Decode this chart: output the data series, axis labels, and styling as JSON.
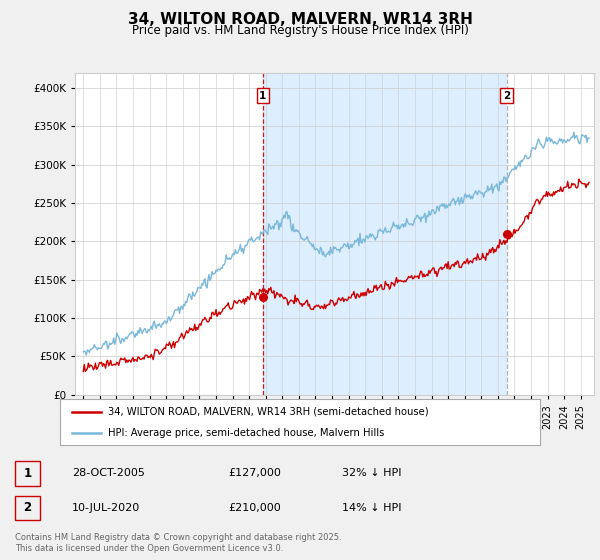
{
  "title": "34, WILTON ROAD, MALVERN, WR14 3RH",
  "subtitle": "Price paid vs. HM Land Registry's House Price Index (HPI)",
  "bg_color": "#f0f0f0",
  "plot_bg_color": "#ffffff",
  "shade_color": "#ddeeff",
  "ylim": [
    0,
    420000
  ],
  "yticks": [
    0,
    50000,
    100000,
    150000,
    200000,
    250000,
    300000,
    350000,
    400000
  ],
  "xlim_start": 1994.5,
  "xlim_end": 2025.8,
  "sale1_date": 2005.83,
  "sale1_price": 127000,
  "sale2_date": 2020.53,
  "sale2_price": 210000,
  "hpi_color": "#7ab8d9",
  "price_color": "#cc0000",
  "vline1_color": "#cc0000",
  "vline2_color": "#aaaaaa",
  "legend_label1": "34, WILTON ROAD, MALVERN, WR14 3RH (semi-detached house)",
  "legend_label2": "HPI: Average price, semi-detached house, Malvern Hills",
  "annotation1_date": "28-OCT-2005",
  "annotation1_price": "£127,000",
  "annotation1_pct": "32% ↓ HPI",
  "annotation2_date": "10-JUL-2020",
  "annotation2_price": "£210,000",
  "annotation2_pct": "14% ↓ HPI",
  "footer": "Contains HM Land Registry data © Crown copyright and database right 2025.\nThis data is licensed under the Open Government Licence v3.0."
}
